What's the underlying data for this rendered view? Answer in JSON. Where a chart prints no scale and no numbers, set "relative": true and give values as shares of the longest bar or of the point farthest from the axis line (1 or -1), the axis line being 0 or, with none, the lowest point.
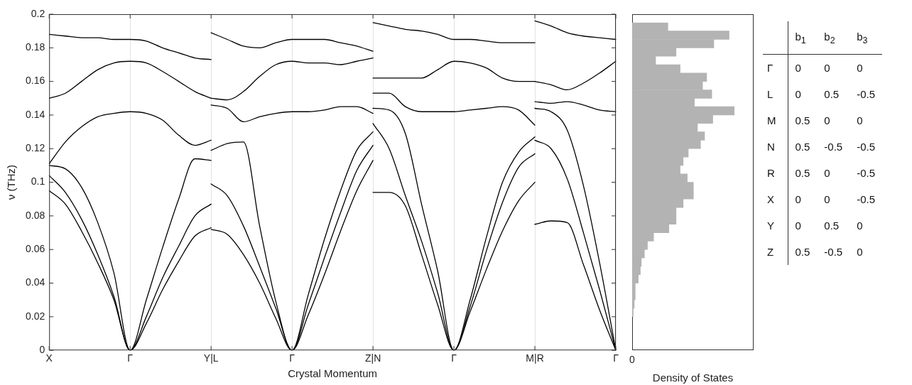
{
  "chart_data": [
    {
      "type": "line",
      "xlabel": "Crystal Momentum",
      "ylabel": "ν (THz)",
      "marker": "none",
      "grid": "x",
      "categories": [
        "X",
        null,
        null,
        null,
        null,
        "Γ",
        null,
        null,
        null,
        null,
        "Y|L",
        null,
        null,
        null,
        null,
        "Γ",
        null,
        null,
        null,
        null,
        "Z|N",
        null,
        null,
        null,
        null,
        "Γ",
        null,
        null,
        null,
        null,
        "M|R",
        null,
        null,
        null,
        null,
        "Γ"
      ],
      "ylim": [
        0,
        0.2
      ],
      "yticks": [
        0,
        0.02,
        0.04,
        0.06,
        0.08,
        0.1,
        0.12,
        0.14,
        0.16,
        0.18,
        0.2
      ],
      "series": [
        {
          "color": "#000000",
          "values": [
            0.095,
            0.087,
            0.071,
            0.052,
            0.03,
            0,
            0.016,
            0.036,
            0.053,
            0.068,
            0.073,
            null,
            null,
            null,
            null,
            null,
            null,
            null,
            null,
            null,
            0.094,
            0.094,
            0.086,
            0.057,
            0.027,
            0,
            0.023,
            0.048,
            0.071,
            0.089,
            0.1,
            null,
            null,
            null,
            null,
            null
          ]
        },
        {
          "color": "#000000",
          "values": [
            null,
            null,
            null,
            null,
            null,
            null,
            null,
            null,
            null,
            null,
            0.072,
            0.069,
            0.057,
            0.04,
            0.019,
            0,
            0.021,
            0.045,
            0.071,
            0.095,
            0.113,
            null,
            null,
            null,
            null,
            null,
            null,
            null,
            null,
            null,
            0.075,
            0.077,
            0.076,
            0.051,
            0.024,
            0
          ]
        },
        {
          "color": "#000000",
          "values": [
            0.104,
            0.094,
            0.078,
            0.057,
            0.032,
            0,
            0.02,
            0.043,
            0.062,
            0.08,
            0.087,
            null,
            null,
            null,
            null,
            null,
            null,
            null,
            null,
            null,
            0.135,
            0.12,
            0.092,
            0.065,
            0.034,
            0,
            0.026,
            0.059,
            0.088,
            0.109,
            0.117,
            null,
            null,
            null,
            null,
            null
          ]
        },
        {
          "color": "#000000",
          "values": [
            null,
            null,
            null,
            null,
            null,
            null,
            null,
            null,
            null,
            null,
            0.099,
            0.092,
            0.074,
            0.05,
            0.025,
            0,
            0.027,
            0.055,
            0.082,
            0.107,
            0.122,
            null,
            null,
            null,
            null,
            null,
            null,
            null,
            null,
            null,
            0.125,
            0.12,
            0.102,
            0.07,
            0.036,
            0
          ]
        },
        {
          "color": "#000000",
          "values": [
            0.11,
            0.108,
            0.097,
            0.076,
            0.046,
            0,
            0.03,
            0.061,
            0.09,
            0.114,
            0.113,
            null,
            null,
            null,
            null,
            null,
            null,
            null,
            null,
            null,
            0.144,
            0.143,
            0.129,
            0.087,
            0.047,
            0,
            0.03,
            0.067,
            0.1,
            0.118,
            0.127,
            null,
            null,
            null,
            null,
            null
          ]
        },
        {
          "color": "#000000",
          "values": [
            null,
            null,
            null,
            null,
            null,
            null,
            null,
            null,
            null,
            null,
            0.119,
            0.123,
            0.124,
            0.074,
            0.029,
            0,
            0.033,
            0.066,
            0.095,
            0.119,
            0.13,
            null,
            null,
            null,
            null,
            null,
            null,
            null,
            null,
            null,
            0.144,
            0.142,
            0.131,
            0.098,
            0.052,
            0
          ]
        },
        {
          "color": "#000000",
          "values": [
            0.111,
            0.124,
            0.133,
            0.139,
            0.141,
            0.142,
            0.141,
            0.137,
            0.128,
            0.122,
            0.125,
            null,
            null,
            null,
            null,
            null,
            null,
            null,
            null,
            null,
            0.153,
            0.153,
            0.145,
            0.142,
            0.142,
            0.142,
            0.143,
            0.144,
            0.145,
            0.143,
            0.134,
            null,
            null,
            null,
            null,
            null
          ]
        },
        {
          "color": "#000000",
          "values": [
            null,
            null,
            null,
            null,
            null,
            null,
            null,
            null,
            null,
            null,
            0.146,
            0.144,
            0.136,
            0.139,
            0.141,
            0.142,
            0.142,
            0.143,
            0.145,
            0.145,
            0.141,
            null,
            null,
            null,
            null,
            null,
            null,
            null,
            null,
            null,
            0.148,
            0.147,
            0.148,
            0.146,
            0.143,
            0.142
          ]
        },
        {
          "color": "#000000",
          "values": [
            0.15,
            0.153,
            0.16,
            0.167,
            0.171,
            0.172,
            0.171,
            0.166,
            0.16,
            0.154,
            0.15,
            null,
            null,
            null,
            null,
            null,
            null,
            null,
            null,
            null,
            0.162,
            0.162,
            0.162,
            0.162,
            0.167,
            0.172,
            0.171,
            0.168,
            0.162,
            0.16,
            0.16,
            null,
            null,
            null,
            null,
            null
          ]
        },
        {
          "color": "#000000",
          "values": [
            null,
            null,
            null,
            null,
            null,
            null,
            null,
            null,
            null,
            null,
            0.15,
            0.149,
            0.154,
            0.163,
            0.17,
            0.172,
            0.171,
            0.171,
            0.17,
            0.172,
            0.174,
            null,
            null,
            null,
            null,
            null,
            null,
            null,
            null,
            null,
            0.16,
            0.158,
            0.155,
            0.159,
            0.165,
            0.172
          ]
        },
        {
          "color": "#000000",
          "values": [
            0.188,
            0.187,
            0.186,
            0.186,
            0.185,
            0.185,
            0.184,
            0.18,
            0.177,
            0.174,
            0.173,
            null,
            null,
            null,
            null,
            null,
            null,
            null,
            null,
            null,
            0.195,
            0.193,
            0.191,
            0.19,
            0.188,
            0.185,
            0.185,
            0.184,
            0.183,
            0.183,
            0.183,
            null,
            null,
            null,
            null,
            null
          ]
        },
        {
          "color": "#000000",
          "values": [
            null,
            null,
            null,
            null,
            null,
            null,
            null,
            null,
            null,
            null,
            0.189,
            0.185,
            0.181,
            0.18,
            0.183,
            0.185,
            0.185,
            0.185,
            0.183,
            0.181,
            0.178,
            null,
            null,
            null,
            null,
            null,
            null,
            null,
            null,
            null,
            0.196,
            0.193,
            0.189,
            0.187,
            0.186,
            0.185
          ]
        }
      ]
    },
    {
      "type": "bar",
      "orientation": "horizontal",
      "relative": true,
      "color": "#b3b3b3",
      "xlabel": "Density of States",
      "annotations": [
        "0"
      ],
      "tick_labels": false,
      "categories": [
        null,
        null,
        null,
        null,
        null,
        null,
        null,
        null,
        null,
        null,
        null,
        null,
        null,
        null,
        null,
        null,
        null,
        null,
        null,
        null,
        null,
        null,
        null,
        null,
        null,
        null,
        null,
        null,
        null,
        null,
        null,
        null,
        null,
        null,
        null
      ],
      "values": [
        0.35,
        0.95,
        0.8,
        0.43,
        0.23,
        0.47,
        0.73,
        0.69,
        0.78,
        0.61,
        1,
        0.79,
        0.64,
        0.71,
        0.67,
        0.55,
        0.5,
        0.47,
        0.54,
        0.6,
        0.6,
        0.5,
        0.43,
        0.43,
        0.36,
        0.21,
        0.15,
        0.12,
        0.09,
        0.08,
        0.06,
        0.03,
        0.03,
        0.02,
        0.01
      ]
    },
    {
      "type": "other",
      "categories": [
        "b$_{1}$",
        "b$_{2}$",
        "b$_{3}$"
      ],
      "y_categories": [
        "Γ",
        "L",
        "M",
        "N",
        "R",
        "X",
        "Y",
        "Z"
      ],
      "cell_labels": [
        [
          "0",
          "0",
          "0"
        ],
        [
          "0",
          "0.5",
          "-0.5"
        ],
        [
          "0.5",
          "0",
          "0"
        ],
        [
          "0.5",
          "-0.5",
          "-0.5"
        ],
        [
          "0.5",
          "0",
          "-0.5"
        ],
        [
          "0",
          "0",
          "-0.5"
        ],
        [
          "0",
          "0.5",
          "0"
        ],
        [
          "0.5",
          "-0.5",
          "0"
        ]
      ]
    }
  ]
}
